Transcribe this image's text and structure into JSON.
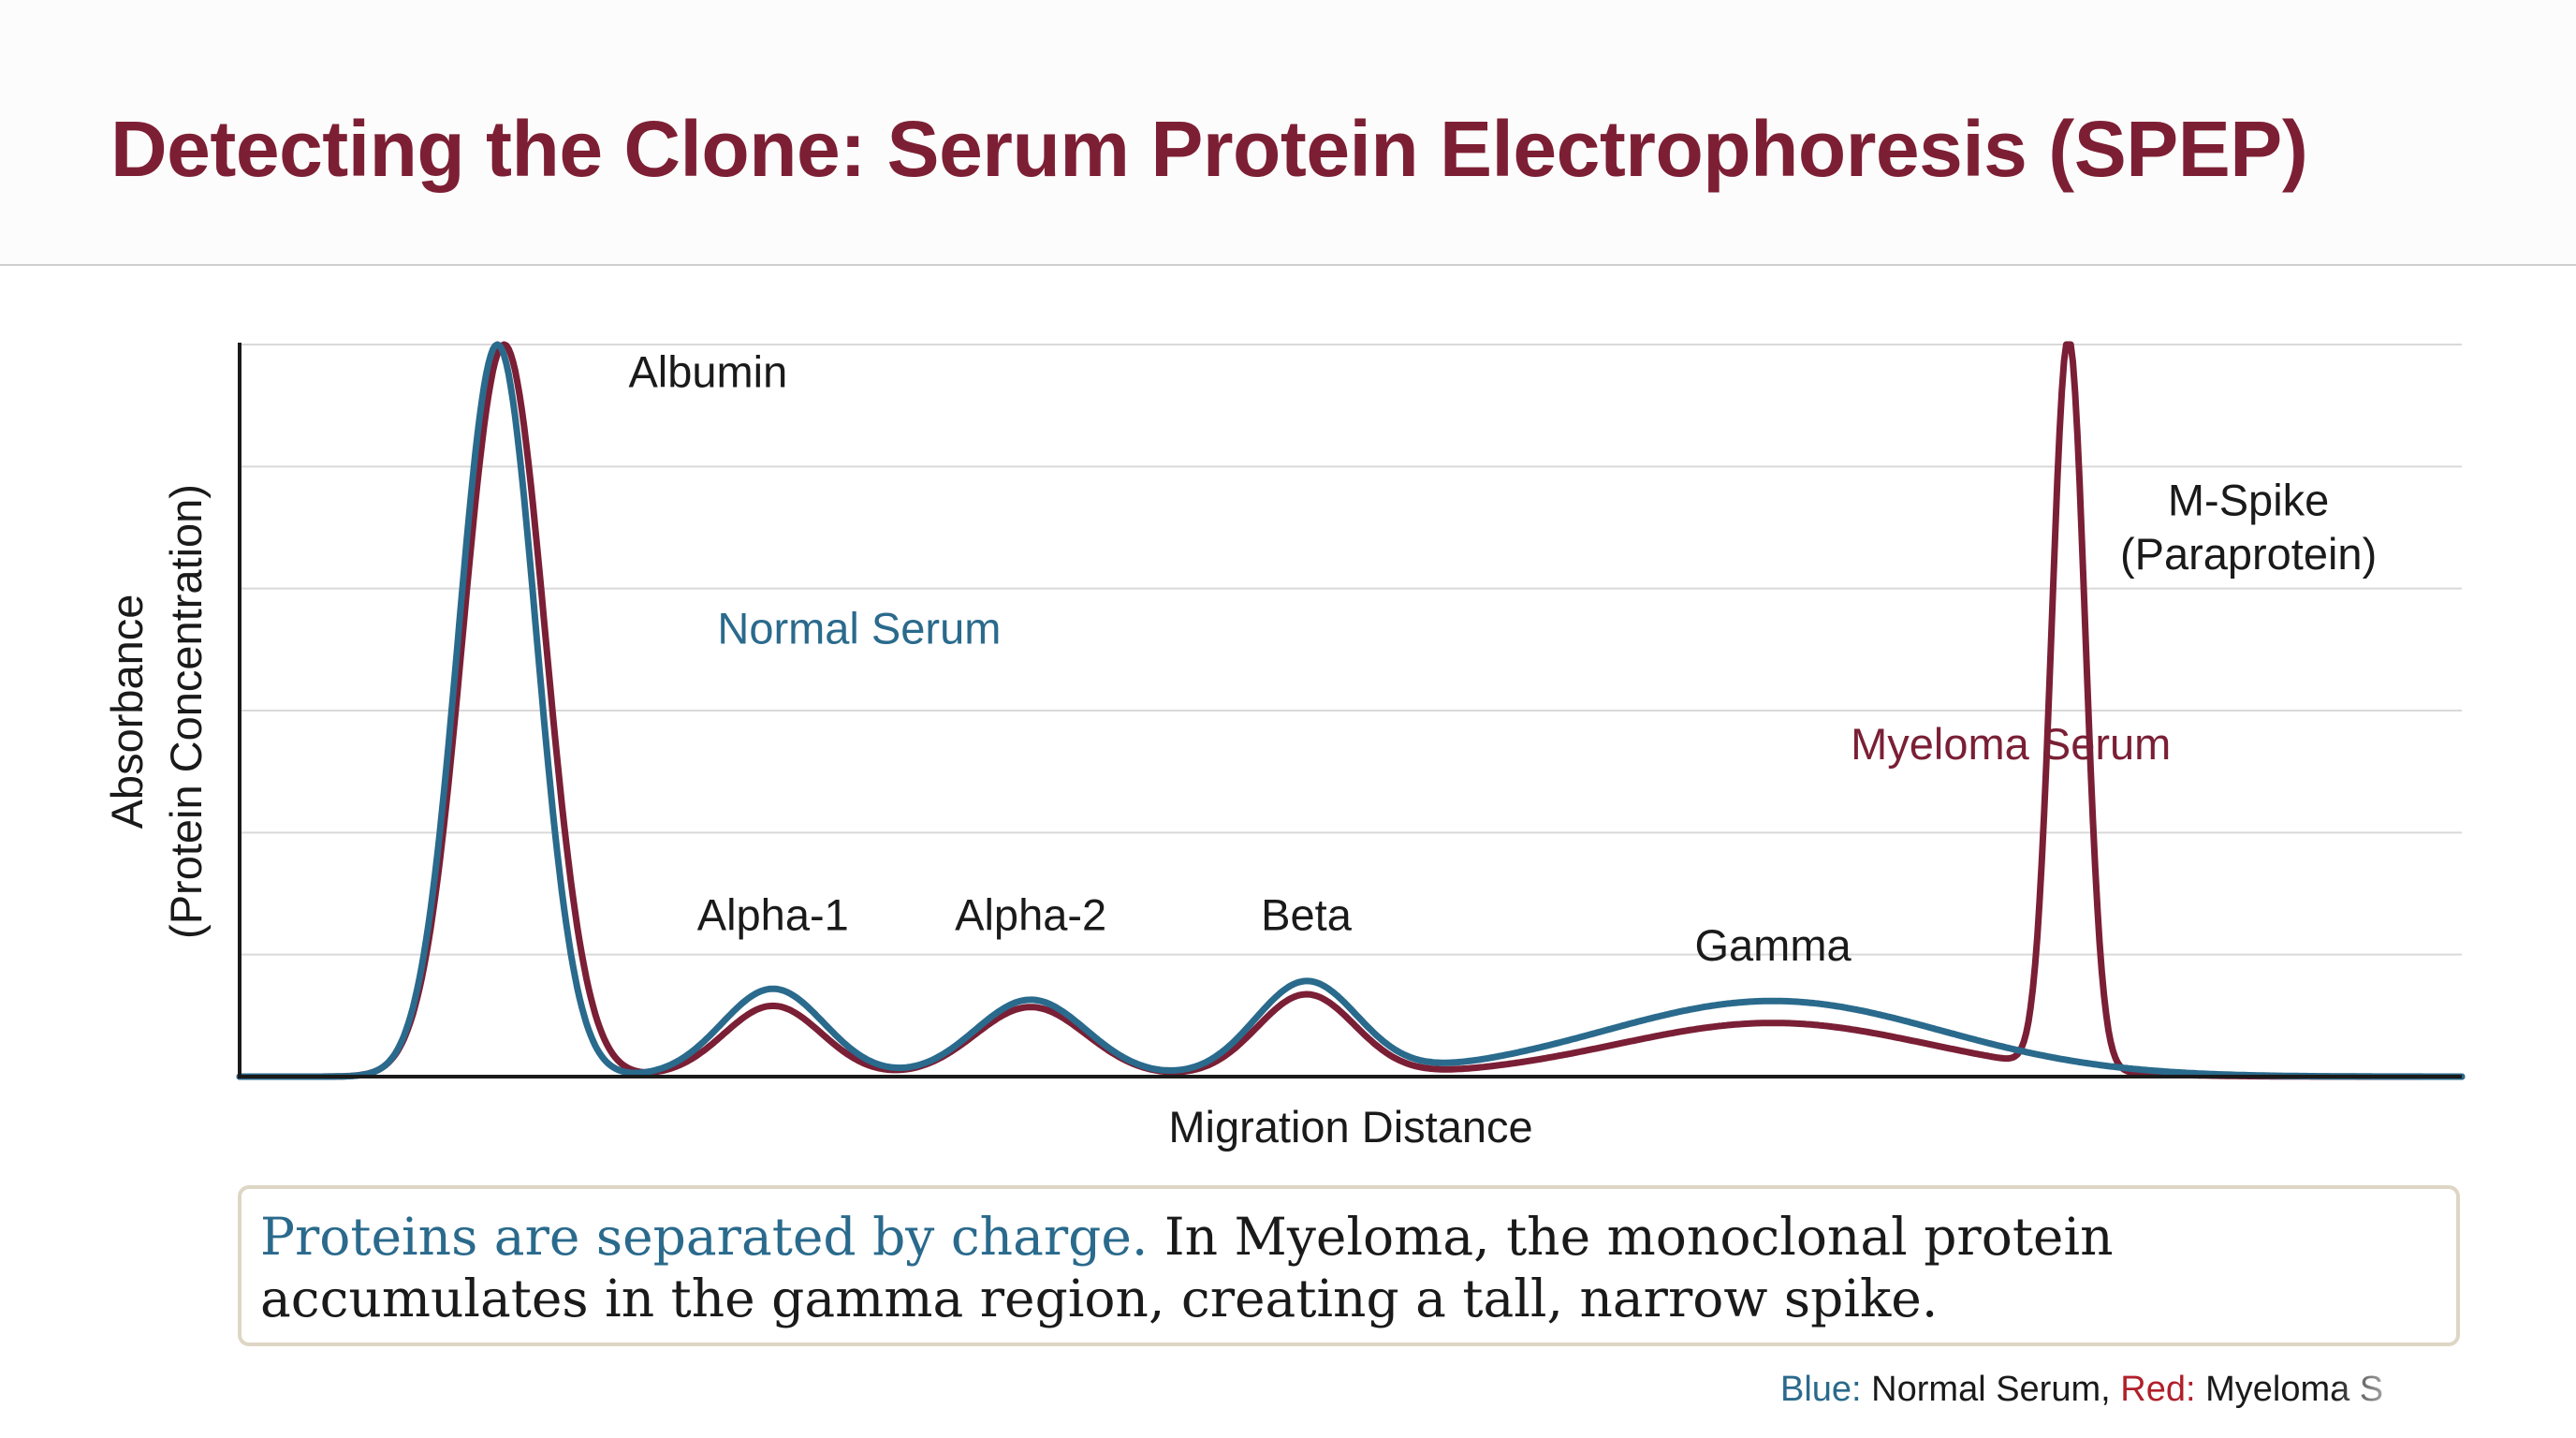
{
  "slide": {
    "title": "Detecting the Clone: Serum Protein Electrophoresis (SPEP)"
  },
  "caption": {
    "lead": "Proteins are separated by charge.",
    "rest": " In Myeloma, the monoclonal protein accumulates in the gamma region, creating a tall, narrow spike."
  },
  "footer": {
    "blue_label": "Blue:",
    "blue_text": " Normal Serum, ",
    "red_label": "Red:",
    "red_text": " Myeloma S"
  },
  "colors": {
    "title": "#7d1f34",
    "normal_serum": "#2a6a8c",
    "myeloma_serum": "#7a1f35",
    "grid": "#d9d9d9",
    "axis": "#1a1a1a"
  },
  "chart_data": {
    "type": "line",
    "title": "",
    "xlabel": "Migration Distance",
    "ylabel": "Absorbance",
    "ylabel_sub": "(Protein Concentration)",
    "xlim": [
      0,
      100
    ],
    "ylim": [
      0,
      6
    ],
    "grid": true,
    "x_ticks_shown": false,
    "y_ticks_shown": false,
    "series": [
      {
        "name": "Normal Serum",
        "color": "#2a6a8c",
        "peaks": [
          {
            "center": 11.6,
            "height": 6.0,
            "width": 1.75
          },
          {
            "center": 24.0,
            "height": 0.72,
            "width": 2.3
          },
          {
            "center": 35.6,
            "height": 0.63,
            "width": 2.5
          },
          {
            "center": 48.0,
            "height": 0.77,
            "width": 2.3
          },
          {
            "center": 69.0,
            "height": 0.62,
            "width": 7.6
          }
        ]
      },
      {
        "name": "Myeloma Serum",
        "color": "#7a1f35",
        "peaks": [
          {
            "center": 11.9,
            "height": 6.0,
            "width": 1.85
          },
          {
            "center": 24.0,
            "height": 0.58,
            "width": 2.2
          },
          {
            "center": 35.6,
            "height": 0.57,
            "width": 2.5
          },
          {
            "center": 48.0,
            "height": 0.67,
            "width": 2.2
          },
          {
            "center": 69.0,
            "height": 0.44,
            "width": 7.0
          },
          {
            "center": 82.3,
            "height": 6.0,
            "width": 0.75
          }
        ]
      }
    ],
    "annotations": [
      {
        "text": "Albumin",
        "x": 17.5,
        "y": 5.65
      },
      {
        "text": "Normal Serum",
        "x": 21.5,
        "y": 3.55,
        "color": "#2a6a8c"
      },
      {
        "text": "Alpha-1",
        "x": 24.0,
        "y": 1.2
      },
      {
        "text": "Alpha-2",
        "x": 35.6,
        "y": 1.2
      },
      {
        "text": "Beta",
        "x": 48.0,
        "y": 1.2
      },
      {
        "text": "Gamma",
        "x": 69.0,
        "y": 0.95
      },
      {
        "text": "Myeloma Serum",
        "x": 72.5,
        "y": 2.6,
        "color": "#7a1f35"
      },
      {
        "text": "M-Spike",
        "x": 90.4,
        "y": 4.6
      },
      {
        "text": "(Paraprotein)",
        "x": 90.4,
        "y": 4.16
      }
    ]
  }
}
